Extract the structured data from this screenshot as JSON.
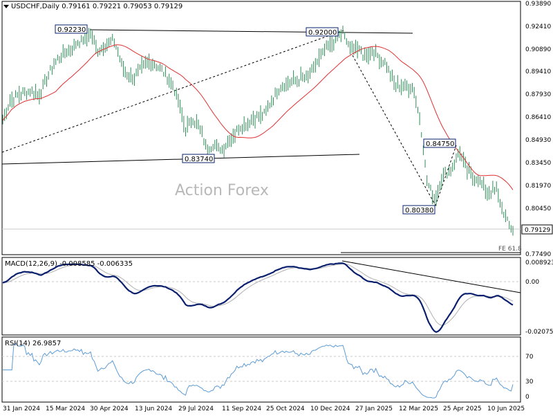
{
  "header": {
    "symbol_line": "USDCHF,Daily  0.79161 0.79221 0.79053 0.79129"
  },
  "watermark": "Action Forex",
  "colors": {
    "background": "#ffffff",
    "price_bar": "#2e8b57",
    "sma": "#e03030",
    "macd_line": "#0a1f6e",
    "macd_signal": "#b0b0b0",
    "rsi": "#5b9bd5",
    "trendline": "#000000",
    "grid": "#c8c8c8"
  },
  "chart_data": [
    {
      "type": "ohlc",
      "panel": "price",
      "title": "USDCHF,Daily",
      "ohlc_last": {
        "open": 0.79161,
        "high": 0.79221,
        "low": 0.79053,
        "close": 0.79129
      },
      "ylim": [
        0.7749,
        0.9389
      ],
      "yticks": [
        "0.93890",
        "0.92410",
        "0.90890",
        "0.89410",
        "0.87930",
        "0.86410",
        "0.84930",
        "0.83450",
        "0.81970",
        "0.80450",
        "0.79129",
        "0.77490"
      ],
      "last_price_label": "0.79129",
      "annotations": [
        "0.92230",
        "0.92000",
        "0.83740",
        "0.84750",
        "0.80380",
        "FE 61.8"
      ],
      "x_labels": [
        "31 Jan 2024",
        "15 Mar 2024",
        "30 Apr 2024",
        "13 Jun 2024",
        "29 Jul 2024",
        "11 Sep 2024",
        "25 Oct 2024",
        "10 Dec 2024",
        "27 Jan 2025",
        "12 Mar 2025",
        "25 Apr 2025",
        "10 Jun 2025"
      ],
      "series_price_approx": [
        [
          "2024-01-31",
          0.862
        ],
        [
          "2024-02-08",
          0.876
        ],
        [
          "2024-02-20",
          0.88
        ],
        [
          "2024-03-01",
          0.881
        ],
        [
          "2024-03-08",
          0.878
        ],
        [
          "2024-03-15",
          0.889
        ],
        [
          "2024-03-27",
          0.902
        ],
        [
          "2024-04-08",
          0.908
        ],
        [
          "2024-04-16",
          0.913
        ],
        [
          "2024-04-24",
          0.915
        ],
        [
          "2024-04-30",
          0.919
        ],
        [
          "2024-05-07",
          0.907
        ],
        [
          "2024-05-16",
          0.911
        ],
        [
          "2024-05-24",
          0.915
        ],
        [
          "2024-05-30",
          0.902
        ],
        [
          "2024-06-05",
          0.893
        ],
        [
          "2024-06-13",
          0.89
        ],
        [
          "2024-06-24",
          0.898
        ],
        [
          "2024-07-01",
          0.901
        ],
        [
          "2024-07-08",
          0.897
        ],
        [
          "2024-07-16",
          0.892
        ],
        [
          "2024-07-24",
          0.885
        ],
        [
          "2024-07-30",
          0.872
        ],
        [
          "2024-08-05",
          0.856
        ],
        [
          "2024-08-13",
          0.864
        ],
        [
          "2024-08-20",
          0.856
        ],
        [
          "2024-08-27",
          0.844
        ],
        [
          "2024-09-03",
          0.846
        ],
        [
          "2024-09-11",
          0.843
        ],
        [
          "2024-09-20",
          0.85
        ],
        [
          "2024-09-30",
          0.858
        ],
        [
          "2024-10-08",
          0.86
        ],
        [
          "2024-10-16",
          0.864
        ],
        [
          "2024-10-25",
          0.866
        ],
        [
          "2024-11-04",
          0.878
        ],
        [
          "2024-11-13",
          0.886
        ],
        [
          "2024-11-22",
          0.887
        ],
        [
          "2024-12-02",
          0.889
        ],
        [
          "2024-12-10",
          0.891
        ],
        [
          "2024-12-18",
          0.9
        ],
        [
          "2024-12-27",
          0.908
        ],
        [
          "2025-01-06",
          0.915
        ],
        [
          "2025-01-13",
          0.92
        ],
        [
          "2025-01-21",
          0.909
        ],
        [
          "2025-01-27",
          0.91
        ],
        [
          "2025-02-05",
          0.904
        ],
        [
          "2025-02-13",
          0.908
        ],
        [
          "2025-02-21",
          0.902
        ],
        [
          "2025-02-28",
          0.898
        ],
        [
          "2025-03-06",
          0.887
        ],
        [
          "2025-03-12",
          0.884
        ],
        [
          "2025-03-20",
          0.885
        ],
        [
          "2025-03-27",
          0.883
        ],
        [
          "2025-04-03",
          0.862
        ],
        [
          "2025-04-10",
          0.822
        ],
        [
          "2025-04-18",
          0.81
        ],
        [
          "2025-04-25",
          0.825
        ],
        [
          "2025-05-05",
          0.83
        ],
        [
          "2025-05-13",
          0.842
        ],
        [
          "2025-05-20",
          0.83
        ],
        [
          "2025-05-28",
          0.825
        ],
        [
          "2025-06-05",
          0.821
        ],
        [
          "2025-06-12",
          0.814
        ],
        [
          "2025-06-20",
          0.817
        ],
        [
          "2025-06-27",
          0.803
        ],
        [
          "2025-07-03",
          0.793
        ],
        [
          "2025-07-07",
          0.7913
        ]
      ]
    },
    {
      "type": "line",
      "panel": "macd",
      "title": "MACD(12,26,9) -0.008585 -0.006335",
      "macd": -0.008585,
      "signal": -0.006335,
      "ylim": [
        -0.0225,
        0.0105
      ],
      "yticks": [
        "0.008923",
        "0.00",
        "-0.020759"
      ]
    },
    {
      "type": "line",
      "panel": "rsi",
      "title": "RSI(14) 26.9857",
      "value": 26.9857,
      "ylim": [
        0,
        100
      ],
      "yticks": [
        "70",
        "30",
        "0"
      ]
    }
  ]
}
